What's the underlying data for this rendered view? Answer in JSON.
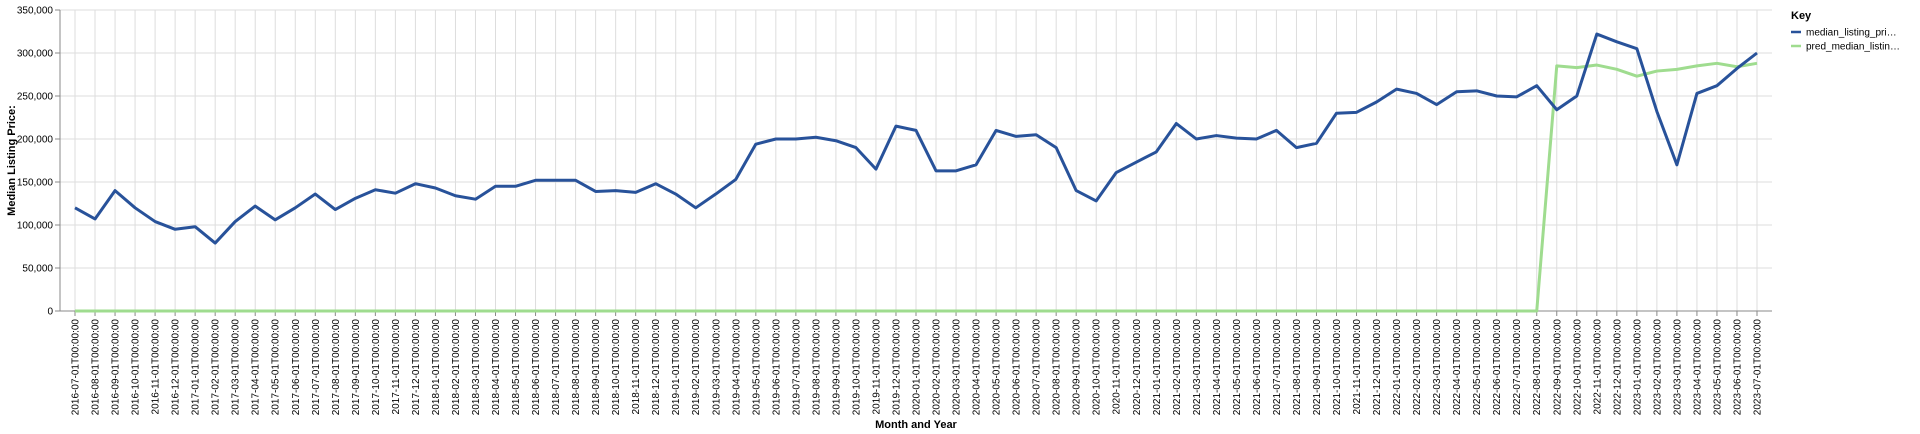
{
  "chart_data": {
    "type": "line",
    "xlabel": "Month and Year",
    "ylabel": "Median Listing Price:",
    "ylim": [
      0,
      350000
    ],
    "yticks": [
      0,
      50000,
      100000,
      150000,
      200000,
      250000,
      300000,
      350000
    ],
    "ytick_labels": [
      "0",
      "50,000",
      "100,000",
      "150,000",
      "200,000",
      "250,000",
      "300,000",
      "350,000"
    ],
    "grid": true,
    "legend": {
      "title": "Key",
      "placement": "top-right",
      "entries": [
        "median_listing_pri…",
        "pred_median_listin…"
      ]
    },
    "x": [
      "2016-07-01T00:00:00",
      "2016-08-01T00:00:00",
      "2016-09-01T00:00:00",
      "2016-10-01T00:00:00",
      "2016-11-01T00:00:00",
      "2016-12-01T00:00:00",
      "2017-01-01T00:00:00",
      "2017-02-01T00:00:00",
      "2017-03-01T00:00:00",
      "2017-04-01T00:00:00",
      "2017-05-01T00:00:00",
      "2017-06-01T00:00:00",
      "2017-07-01T00:00:00",
      "2017-08-01T00:00:00",
      "2017-09-01T00:00:00",
      "2017-10-01T00:00:00",
      "2017-11-01T00:00:00",
      "2017-12-01T00:00:00",
      "2018-01-01T00:00:00",
      "2018-02-01T00:00:00",
      "2018-03-01T00:00:00",
      "2018-04-01T00:00:00",
      "2018-05-01T00:00:00",
      "2018-06-01T00:00:00",
      "2018-07-01T00:00:00",
      "2018-08-01T00:00:00",
      "2018-09-01T00:00:00",
      "2018-10-01T00:00:00",
      "2018-11-01T00:00:00",
      "2018-12-01T00:00:00",
      "2019-01-01T00:00:00",
      "2019-02-01T00:00:00",
      "2019-03-01T00:00:00",
      "2019-04-01T00:00:00",
      "2019-05-01T00:00:00",
      "2019-06-01T00:00:00",
      "2019-07-01T00:00:00",
      "2019-08-01T00:00:00",
      "2019-09-01T00:00:00",
      "2019-10-01T00:00:00",
      "2019-11-01T00:00:00",
      "2019-12-01T00:00:00",
      "2020-01-01T00:00:00",
      "2020-02-01T00:00:00",
      "2020-03-01T00:00:00",
      "2020-04-01T00:00:00",
      "2020-05-01T00:00:00",
      "2020-06-01T00:00:00",
      "2020-07-01T00:00:00",
      "2020-08-01T00:00:00",
      "2020-09-01T00:00:00",
      "2020-10-01T00:00:00",
      "2020-11-01T00:00:00",
      "2020-12-01T00:00:00",
      "2021-01-01T00:00:00",
      "2021-02-01T00:00:00",
      "2021-03-01T00:00:00",
      "2021-04-01T00:00:00",
      "2021-05-01T00:00:00",
      "2021-06-01T00:00:00",
      "2021-07-01T00:00:00",
      "2021-08-01T00:00:00",
      "2021-09-01T00:00:00",
      "2021-10-01T00:00:00",
      "2021-11-01T00:00:00",
      "2021-12-01T00:00:00",
      "2022-01-01T00:00:00",
      "2022-02-01T00:00:00",
      "2022-03-01T00:00:00",
      "2022-04-01T00:00:00",
      "2022-05-01T00:00:00",
      "2022-06-01T00:00:00",
      "2022-07-01T00:00:00",
      "2022-08-01T00:00:00",
      "2022-09-01T00:00:00",
      "2022-10-01T00:00:00",
      "2022-11-01T00:00:00",
      "2022-12-01T00:00:00",
      "2023-01-01T00:00:00",
      "2023-02-01T00:00:00",
      "2023-03-01T00:00:00",
      "2023-04-01T00:00:00",
      "2023-05-01T00:00:00",
      "2023-06-01T00:00:00",
      "2023-07-01T00:00:00"
    ],
    "series": [
      {
        "name": "median_listing_pri…",
        "color": "#28529a",
        "values": [
          120000,
          107000,
          140000,
          120000,
          104000,
          95000,
          98000,
          79000,
          104000,
          122000,
          106000,
          120000,
          136000,
          118000,
          131000,
          141000,
          137000,
          148000,
          143000,
          134000,
          130000,
          145000,
          145000,
          152000,
          152000,
          152000,
          139000,
          140000,
          138000,
          148000,
          136000,
          120000,
          136000,
          153000,
          194000,
          200000,
          200000,
          202000,
          198000,
          190000,
          165000,
          215000,
          210000,
          163000,
          163000,
          170000,
          210000,
          203000,
          205000,
          190000,
          140000,
          128000,
          161000,
          173000,
          185000,
          218000,
          200000,
          204000,
          201000,
          200000,
          210000,
          190000,
          195000,
          230000,
          231000,
          243000,
          258000,
          253000,
          240000,
          255000,
          256000,
          250000,
          249000,
          262000,
          234000,
          250000,
          322000,
          313000,
          305000,
          232000,
          170000,
          253000,
          262000,
          282000,
          300000
        ]
      },
      {
        "name": "pred_median_listin…",
        "color": "#9fdc8f",
        "values": [
          0,
          0,
          0,
          0,
          0,
          0,
          0,
          0,
          0,
          0,
          0,
          0,
          0,
          0,
          0,
          0,
          0,
          0,
          0,
          0,
          0,
          0,
          0,
          0,
          0,
          0,
          0,
          0,
          0,
          0,
          0,
          0,
          0,
          0,
          0,
          0,
          0,
          0,
          0,
          0,
          0,
          0,
          0,
          0,
          0,
          0,
          0,
          0,
          0,
          0,
          0,
          0,
          0,
          0,
          0,
          0,
          0,
          0,
          0,
          0,
          0,
          0,
          0,
          0,
          0,
          0,
          0,
          0,
          0,
          0,
          0,
          0,
          0,
          0,
          285000,
          283000,
          286000,
          281000,
          273000,
          279000,
          281000,
          285000,
          288000,
          284000,
          288000
        ]
      }
    ]
  }
}
